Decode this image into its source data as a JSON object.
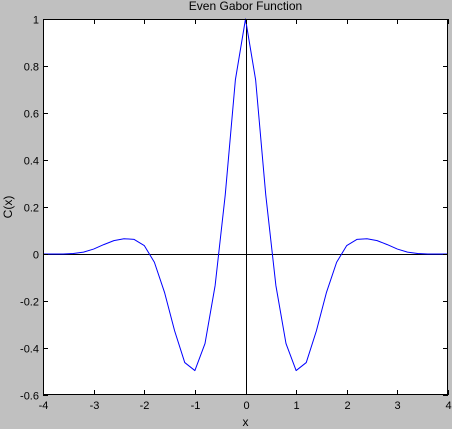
{
  "chart_data": {
    "type": "line",
    "title": "Even Gabor Function",
    "xlabel": "x",
    "ylabel": "C(x)",
    "xlim": [
      -4,
      4
    ],
    "ylim": [
      -0.6,
      1
    ],
    "grid": false,
    "legend": "none",
    "x_ticks": [
      -4,
      -3,
      -2,
      -1,
      0,
      1,
      2,
      3,
      4
    ],
    "x_tick_labels": [
      "-4",
      "-3",
      "-2",
      "-1",
      "0",
      "1",
      "2",
      "3",
      "4"
    ],
    "y_ticks": [
      -0.6,
      -0.4,
      -0.2,
      0,
      0.2,
      0.4,
      0.6,
      0.8,
      1
    ],
    "y_tick_labels": [
      "-0.6",
      "-0.4",
      "-0.2",
      "0",
      "0.2",
      "0.4",
      "0.6",
      "0.8",
      "1"
    ],
    "reference_lines": {
      "x": 0,
      "y": 0
    },
    "series": [
      {
        "color": "#0000ff",
        "x": [
          -4.0,
          -3.8,
          -3.6,
          -3.4,
          -3.2,
          -3.0,
          -2.8,
          -2.6,
          -2.4,
          -2.2,
          -2.0,
          -1.8,
          -1.6,
          -1.4,
          -1.2,
          -1.0,
          -0.8,
          -0.6,
          -0.4,
          -0.2,
          0.0,
          0.2,
          0.4,
          0.6,
          0.8,
          1.0,
          1.2,
          1.4,
          1.6,
          1.8,
          2.0,
          2.2,
          2.4,
          2.6,
          2.8,
          3.0,
          3.2,
          3.4,
          3.6,
          3.8,
          4.0
        ],
        "y": [
          0.0,
          0.0,
          0.0,
          0.002,
          0.008,
          0.021,
          0.04,
          0.057,
          0.065,
          0.062,
          0.036,
          -0.035,
          -0.163,
          -0.327,
          -0.462,
          -0.496,
          -0.381,
          -0.134,
          0.252,
          0.741,
          1.0,
          0.741,
          0.252,
          -0.134,
          -0.381,
          -0.496,
          -0.462,
          -0.327,
          -0.163,
          -0.035,
          0.036,
          0.062,
          0.065,
          0.057,
          0.04,
          0.021,
          0.008,
          0.002,
          0.0,
          0.0,
          0.0
        ]
      }
    ]
  }
}
